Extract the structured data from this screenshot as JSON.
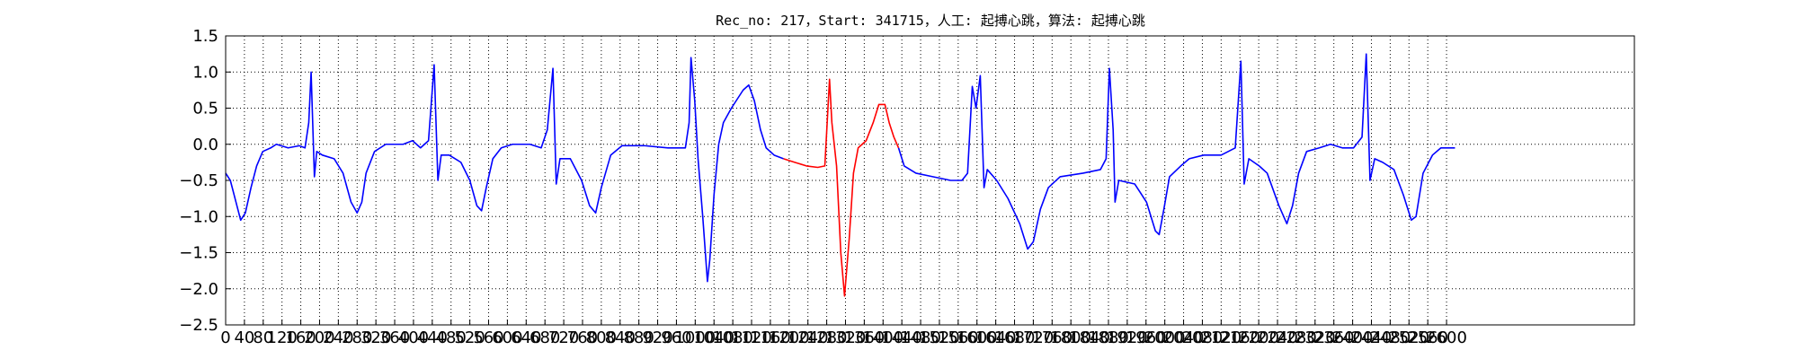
{
  "chart_data": {
    "type": "line",
    "title": "Rec_no: 217，Start: 341715，人工: 起搏心跳，算法: 起搏心跳",
    "xlim": [
      0,
      3000
    ],
    "xticks": [
      0,
      40,
      80,
      120,
      160,
      200,
      240,
      280,
      320,
      360,
      400,
      440,
      480,
      520,
      560,
      600,
      640,
      680,
      720,
      760,
      800,
      840,
      880,
      920,
      960,
      1000,
      1040,
      1080,
      1120,
      1160,
      1200,
      1240,
      1280,
      1320,
      1360,
      1400,
      1440,
      1480,
      1520,
      1560,
      1600,
      1640,
      1680,
      1720,
      1760,
      1800,
      1840,
      1880,
      1920,
      1960,
      2000,
      2040,
      2080,
      2120,
      2160,
      2200,
      2240,
      2280,
      2320,
      2360,
      2400,
      2440,
      2480,
      2520,
      2560,
      2600
    ],
    "ylim": [
      -2.5,
      1.5
    ],
    "yticks": [
      {
        "value": -2.5,
        "label": "−2.5"
      },
      {
        "value": -2.0,
        "label": "−2.0"
      },
      {
        "value": -1.5,
        "label": "−1.5"
      },
      {
        "value": -1.0,
        "label": "−1.0"
      },
      {
        "value": -0.5,
        "label": "−0.5"
      },
      {
        "value": 0,
        "label": "0.0"
      },
      0.5,
      {
        "value": 1,
        "label": "1.0"
      },
      1.5
    ],
    "grid": true,
    "series": [
      {
        "color": "#0000ff",
        "x": [
          0,
          10,
          22,
          32,
          42,
          54,
          66,
          79,
          96,
          108,
          133,
          157,
          169,
          177,
          182,
          189,
          194,
          206,
          231,
          250,
          267,
          280,
          290,
          299,
          317,
          341,
          378,
          398,
          415,
          432,
          444,
          452,
          459,
          476,
          501,
          520,
          535,
          545,
          555,
          569,
          587,
          611,
          648,
          672,
          685,
          697,
          704,
          712,
          734,
          758,
          775,
          788,
          800,
          820,
          844,
          893,
          942,
          979,
          987,
          991,
          999,
          1006,
          1016,
          1026,
          1031,
          1040,
          1050,
          1060,
          1077,
          1102,
          1114,
          1126,
          1139,
          1151,
          1168,
          1188
        ],
        "values": [
          -0.4,
          -0.5,
          -0.8,
          -1.05,
          -0.95,
          -0.6,
          -0.3,
          -0.1,
          -0.05,
          0.0,
          -0.05,
          -0.02,
          -0.05,
          0.3,
          1.0,
          -0.45,
          -0.1,
          -0.15,
          -0.2,
          -0.4,
          -0.8,
          -0.95,
          -0.8,
          -0.4,
          -0.1,
          0.0,
          0.0,
          0.05,
          -0.05,
          0.05,
          1.1,
          -0.5,
          -0.15,
          -0.15,
          -0.25,
          -0.5,
          -0.85,
          -0.92,
          -0.6,
          -0.2,
          -0.05,
          0.0,
          0.0,
          -0.05,
          0.2,
          1.05,
          -0.55,
          -0.2,
          -0.2,
          -0.5,
          -0.85,
          -0.95,
          -0.6,
          -0.15,
          -0.02,
          -0.02,
          -0.05,
          -0.05,
          0.3,
          1.2,
          0.6,
          -0.2,
          -1.0,
          -1.9,
          -1.6,
          -0.7,
          0.0,
          0.3,
          0.5,
          0.75,
          0.82,
          0.6,
          0.2,
          -0.05,
          -0.15,
          -0.2
        ]
      },
      {
        "color": "#ff0000",
        "x": [
          1188,
          1212,
          1237,
          1261,
          1276,
          1286,
          1291,
          1301,
          1310,
          1318,
          1328,
          1337,
          1347,
          1364,
          1379,
          1391,
          1404,
          1413,
          1423,
          1433
        ],
        "values": [
          -0.2,
          -0.25,
          -0.3,
          -0.32,
          -0.3,
          0.9,
          0.3,
          -0.3,
          -1.5,
          -2.1,
          -1.3,
          -0.4,
          -0.05,
          0.05,
          0.3,
          0.55,
          0.55,
          0.3,
          0.1,
          -0.05
        ]
      },
      {
        "color": "#0000ff",
        "x": [
          1433,
          1445,
          1470,
          1507,
          1544,
          1568,
          1580,
          1590,
          1598,
          1607,
          1615,
          1622,
          1642,
          1666,
          1691,
          1708,
          1720,
          1735,
          1752,
          1777,
          1826,
          1863,
          1875,
          1882,
          1890,
          1894,
          1902,
          1936,
          1961,
          1980,
          1988,
          1998,
          2010,
          2034,
          2052,
          2083,
          2120,
          2150,
          2162,
          2169,
          2179,
          2201,
          2218,
          2243,
          2260,
          2272,
          2285,
          2302,
          2329,
          2353,
          2378,
          2402,
          2420,
          2429,
          2437,
          2447,
          2464,
          2488,
          2508,
          2525,
          2535,
          2550,
          2570,
          2588,
          2618
        ],
        "values": [
          -0.05,
          -0.3,
          -0.4,
          -0.45,
          -0.5,
          -0.5,
          -0.4,
          0.8,
          0.5,
          0.95,
          -0.6,
          -0.35,
          -0.5,
          -0.75,
          -1.1,
          -1.45,
          -1.35,
          -0.9,
          -0.6,
          -0.45,
          -0.4,
          -0.35,
          -0.2,
          1.05,
          0.2,
          -0.8,
          -0.5,
          -0.55,
          -0.8,
          -1.2,
          -1.25,
          -0.9,
          -0.45,
          -0.3,
          -0.2,
          -0.15,
          -0.15,
          -0.05,
          1.15,
          -0.55,
          -0.2,
          -0.3,
          -0.4,
          -0.85,
          -1.1,
          -0.85,
          -0.4,
          -0.1,
          -0.05,
          0.0,
          -0.05,
          -0.05,
          0.1,
          1.25,
          -0.5,
          -0.2,
          -0.25,
          -0.35,
          -0.7,
          -1.05,
          -1.0,
          -0.4,
          -0.15,
          -0.05,
          -0.05
        ]
      }
    ]
  }
}
